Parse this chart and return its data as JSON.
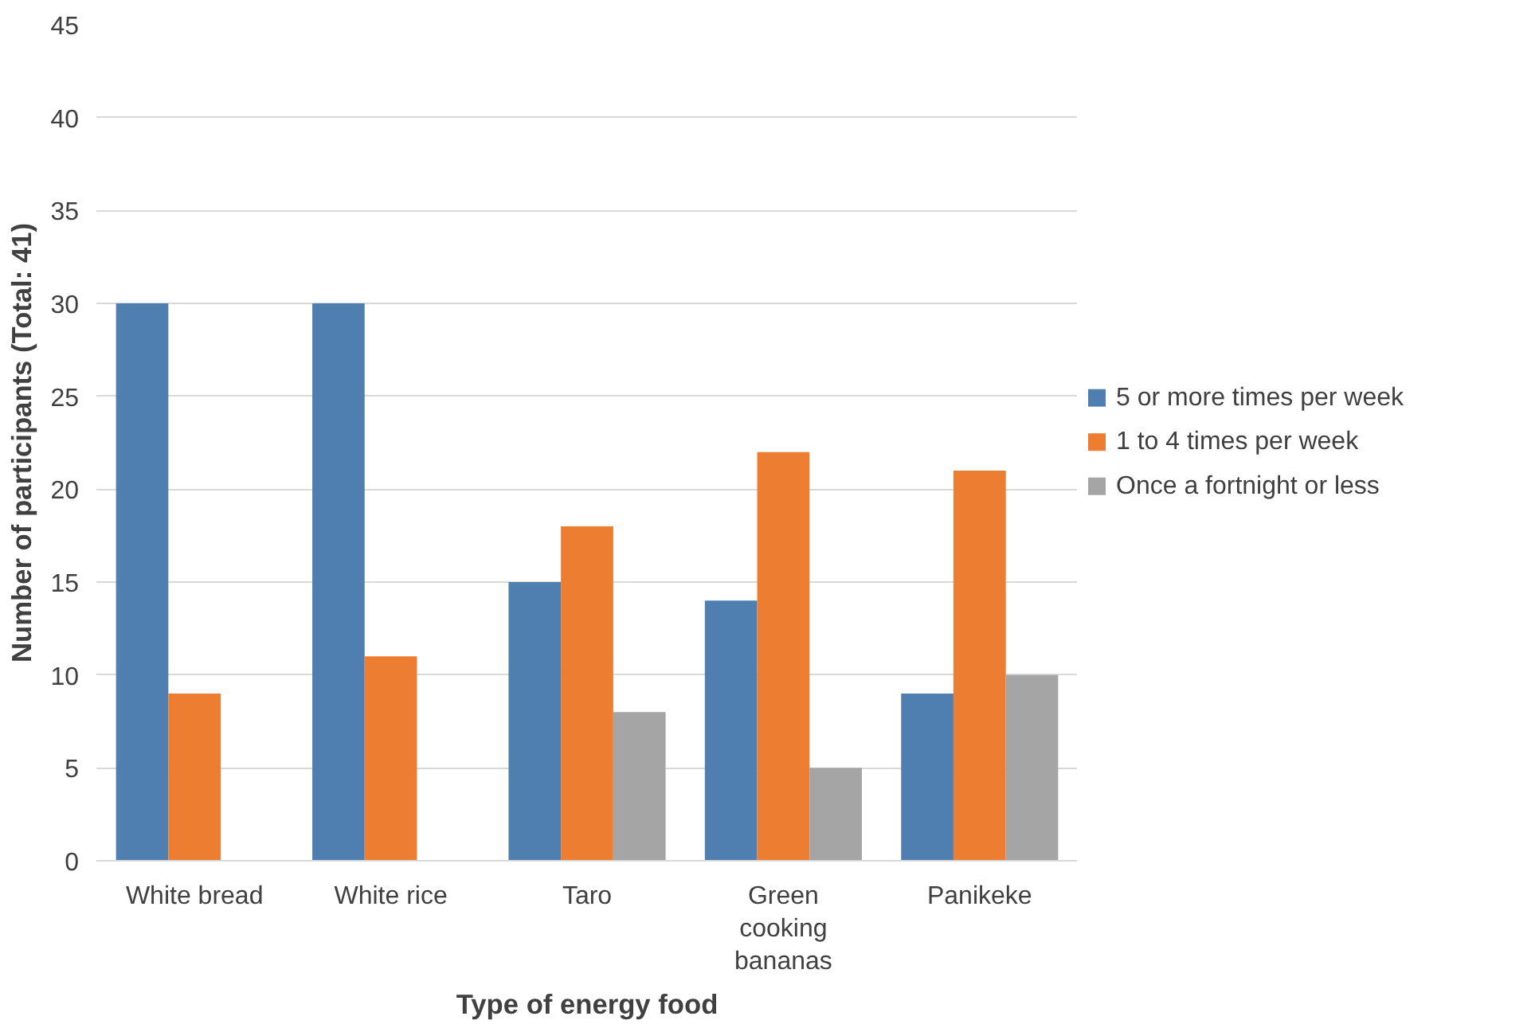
{
  "chart_data": {
    "type": "bar",
    "xlabel": "Type of energy food",
    "ylabel": "Number of participants (Total: 41)",
    "categories": [
      "White bread",
      "White rice",
      "Taro",
      "Green cooking bananas",
      "Panikeke"
    ],
    "series": [
      {
        "name": "5 or more times per week",
        "color": "#4e7fb0",
        "values": [
          30,
          30,
          15,
          14,
          9
        ]
      },
      {
        "name": "1 to 4 times per week",
        "color": "#ed7d31",
        "values": [
          9,
          11,
          18,
          22,
          21
        ]
      },
      {
        "name": "Once a fortnight or less",
        "color": "#a5a5a5",
        "values": [
          0,
          0,
          8,
          5,
          10
        ]
      }
    ],
    "ylim": [
      0,
      45
    ],
    "yticks": [
      0,
      5,
      10,
      15,
      20,
      25,
      30,
      35,
      40,
      45
    ],
    "grid": "y",
    "legend": "right"
  }
}
